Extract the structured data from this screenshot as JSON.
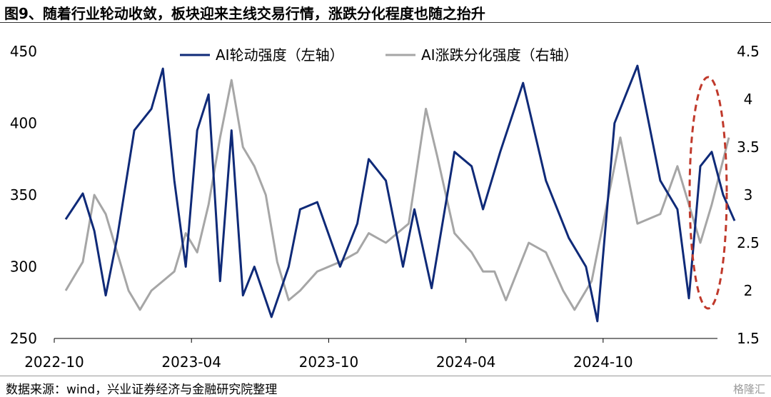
{
  "header": {
    "title": "图9、随着行业轮动收敛，板块迎来主线交易行情，涨跌分化程度也随之抬升"
  },
  "footer": {
    "source": "数据来源：wind，兴业证券经济与金融研究院整理",
    "watermark": "格隆汇"
  },
  "colors": {
    "left_series": "#0f2a78",
    "right_series": "#a6a6a6",
    "highlight_ellipse": "#c0392b"
  },
  "chart_data": {
    "type": "line",
    "title": "",
    "x_tick_labels": [
      "2022-10",
      "2023-04",
      "2023-10",
      "2024-04",
      "2024-10"
    ],
    "x_range": [
      "2022-10",
      "2025-03"
    ],
    "y_left": {
      "ticks": [
        250,
        300,
        350,
        400,
        450
      ],
      "range": [
        250,
        450
      ]
    },
    "y_right": {
      "ticks": [
        "1.5",
        "2",
        "2.5",
        "3",
        "3.5",
        "4",
        "4.5"
      ],
      "range": [
        1.5,
        4.5
      ]
    },
    "grid": false,
    "legend_position": "top-center",
    "annotation": "red dashed ellipse highlighting the most recent period (2025-01 to 2025-03)",
    "series": [
      {
        "name": "AI轮动强度（左轴）",
        "axis": "left",
        "points": [
          [
            "2022-10",
            333
          ],
          [
            "2022-11",
            351
          ],
          [
            "2022-11",
            325
          ],
          [
            "2022-12",
            280
          ],
          [
            "2022-12",
            320
          ],
          [
            "2023-01",
            395
          ],
          [
            "2023-02",
            410
          ],
          [
            "2023-02",
            438
          ],
          [
            "2023-03",
            360
          ],
          [
            "2023-03",
            300
          ],
          [
            "2023-04",
            395
          ],
          [
            "2023-04",
            420
          ],
          [
            "2023-05",
            290
          ],
          [
            "2023-05",
            395
          ],
          [
            "2023-06",
            280
          ],
          [
            "2023-06",
            300
          ],
          [
            "2023-07",
            265
          ],
          [
            "2023-08",
            300
          ],
          [
            "2023-08",
            340
          ],
          [
            "2023-09",
            345
          ],
          [
            "2023-10",
            300
          ],
          [
            "2023-11",
            330
          ],
          [
            "2023-11",
            375
          ],
          [
            "2023-12",
            360
          ],
          [
            "2024-01",
            300
          ],
          [
            "2024-01",
            340
          ],
          [
            "2024-02",
            285
          ],
          [
            "2024-03",
            380
          ],
          [
            "2024-04",
            370
          ],
          [
            "2024-04",
            340
          ],
          [
            "2024-05",
            380
          ],
          [
            "2024-06",
            428
          ],
          [
            "2024-07",
            360
          ],
          [
            "2024-08",
            320
          ],
          [
            "2024-09",
            300
          ],
          [
            "2024-09",
            262
          ],
          [
            "2024-10",
            400
          ],
          [
            "2024-11",
            440
          ],
          [
            "2024-12",
            360
          ],
          [
            "2025-01",
            340
          ],
          [
            "2025-01",
            278
          ],
          [
            "2025-02",
            370
          ],
          [
            "2025-02",
            380
          ],
          [
            "2025-03",
            350
          ],
          [
            "2025-03",
            332
          ]
        ]
      },
      {
        "name": "AI涨跌分化强度（右轴）",
        "axis": "right",
        "points": [
          [
            "2022-10",
            2.0
          ],
          [
            "2022-11",
            2.3
          ],
          [
            "2022-11",
            3.0
          ],
          [
            "2022-12",
            2.8
          ],
          [
            "2022-12",
            2.4
          ],
          [
            "2023-01",
            2.0
          ],
          [
            "2023-01",
            1.8
          ],
          [
            "2023-02",
            2.0
          ],
          [
            "2023-02",
            2.1
          ],
          [
            "2023-03",
            2.2
          ],
          [
            "2023-03",
            2.6
          ],
          [
            "2023-04",
            2.4
          ],
          [
            "2023-04",
            2.9
          ],
          [
            "2023-05",
            3.6
          ],
          [
            "2023-05",
            4.2
          ],
          [
            "2023-06",
            3.5
          ],
          [
            "2023-06",
            3.3
          ],
          [
            "2023-07",
            3.0
          ],
          [
            "2023-07",
            2.3
          ],
          [
            "2023-08",
            1.9
          ],
          [
            "2023-08",
            2.0
          ],
          [
            "2023-09",
            2.2
          ],
          [
            "2023-10",
            2.3
          ],
          [
            "2023-11",
            2.4
          ],
          [
            "2023-11",
            2.6
          ],
          [
            "2023-12",
            2.5
          ],
          [
            "2024-01",
            2.7
          ],
          [
            "2024-02",
            3.9
          ],
          [
            "2024-02",
            3.4
          ],
          [
            "2024-03",
            2.6
          ],
          [
            "2024-04",
            2.4
          ],
          [
            "2024-04",
            2.2
          ],
          [
            "2024-05",
            2.2
          ],
          [
            "2024-05",
            1.9
          ],
          [
            "2024-06",
            2.2
          ],
          [
            "2024-06",
            2.5
          ],
          [
            "2024-07",
            2.4
          ],
          [
            "2024-08",
            2.0
          ],
          [
            "2024-08",
            1.8
          ],
          [
            "2024-09",
            2.1
          ],
          [
            "2024-10",
            3.0
          ],
          [
            "2024-10",
            3.6
          ],
          [
            "2024-11",
            2.7
          ],
          [
            "2024-12",
            2.8
          ],
          [
            "2025-01",
            3.3
          ],
          [
            "2025-01",
            2.9
          ],
          [
            "2025-02",
            2.5
          ],
          [
            "2025-02",
            2.9
          ],
          [
            "2025-03",
            3.6
          ]
        ]
      }
    ]
  }
}
